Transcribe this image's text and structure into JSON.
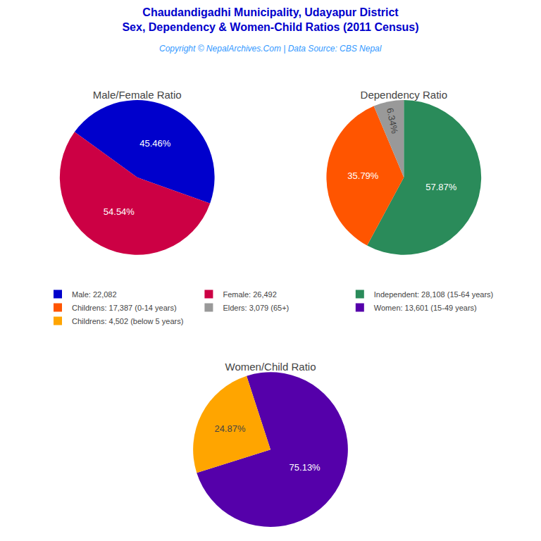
{
  "title": "Chaudandigadhi Municipality, Udayapur District",
  "subtitle": "Sex, Dependency & Women-Child Ratios (2011 Census)",
  "annotations": [
    "Copyright © NepalArchives.Com | Data Source: CBS Nepal"
  ],
  "legend": "center",
  "chart_data": [
    {
      "type": "pie",
      "title": "Male/Female Ratio",
      "categories": [
        "Male: 22,082",
        "Female: 26,492"
      ],
      "values": [
        45.46,
        54.54
      ],
      "value_labels": [
        "45.46%",
        "54.54%"
      ],
      "colors": [
        "#0000CC",
        "#CC0044"
      ],
      "data_labels": true
    },
    {
      "type": "pie",
      "title": "Dependency Ratio",
      "categories": [
        "Independent: 28,108 (15-64 years)",
        "Childrens: 17,387 (0-14 years)",
        "Elders: 3,079 (65+)"
      ],
      "values": [
        57.87,
        35.79,
        6.34
      ],
      "value_labels": [
        "57.87%",
        "35.79%",
        "6.34%"
      ],
      "colors": [
        "#2A8B5A",
        "#FF5500",
        "#999999"
      ],
      "data_labels": true
    },
    {
      "type": "pie",
      "title": "Women/Child Ratio",
      "categories": [
        "Women: 13,601 (15-49 years)",
        "Childrens: 4,502 (below 5 years)"
      ],
      "values": [
        75.13,
        24.87
      ],
      "value_labels": [
        "75.13%",
        "24.87%"
      ],
      "colors": [
        "#5500AA",
        "#FFA500"
      ],
      "data_labels": true
    }
  ]
}
